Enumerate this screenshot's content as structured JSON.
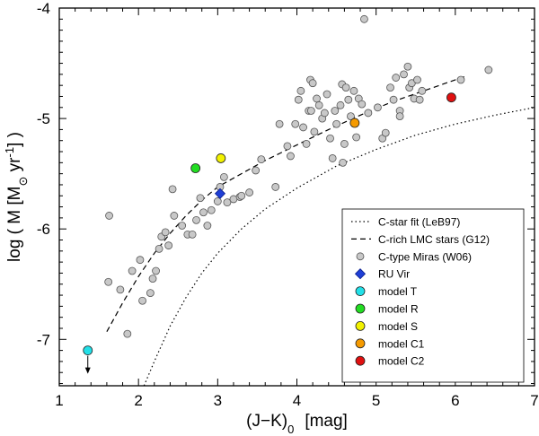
{
  "chart_data": {
    "type": "scatter",
    "xlabel": {
      "main": "(J−K)",
      "sub": "0",
      "unit": "[mag]"
    },
    "ylabel": {
      "prefix": "log ( ",
      "mdot": "M",
      "bracket_open": " [M",
      "sun": "⊙",
      "yr": " yr",
      "exp": "-1",
      "suffix": "] )"
    },
    "xlim": [
      1,
      7
    ],
    "ylim": [
      -7.42,
      -4.0
    ],
    "x_ticks": [
      1,
      2,
      3,
      4,
      5,
      6,
      7
    ],
    "y_ticks": [
      -7,
      -6,
      -5,
      -4
    ],
    "x_tick_labels": [
      "1",
      "2",
      "3",
      "4",
      "5",
      "6",
      "7"
    ],
    "y_tick_labels": [
      "-7",
      "-6",
      "-5",
      "-4"
    ],
    "series": [
      {
        "name": "C-type Miras (W06)",
        "marker": "circle",
        "color": "#c8c8c8",
        "points": [
          [
            1.63,
            -5.88
          ],
          [
            1.62,
            -6.48
          ],
          [
            1.77,
            -6.55
          ],
          [
            1.86,
            -6.95
          ],
          [
            1.92,
            -6.38
          ],
          [
            2.02,
            -6.28
          ],
          [
            2.05,
            -6.65
          ],
          [
            2.15,
            -6.58
          ],
          [
            2.22,
            -6.38
          ],
          [
            2.18,
            -6.45
          ],
          [
            2.26,
            -6.18
          ],
          [
            2.29,
            -6.07
          ],
          [
            2.34,
            -6.03
          ],
          [
            2.38,
            -6.15
          ],
          [
            2.45,
            -5.88
          ],
          [
            2.55,
            -5.97
          ],
          [
            2.62,
            -6.05
          ],
          [
            2.68,
            -6.05
          ],
          [
            2.73,
            -5.92
          ],
          [
            2.82,
            -5.85
          ],
          [
            2.87,
            -5.97
          ],
          [
            2.92,
            -5.83
          ],
          [
            2.78,
            -5.72
          ],
          [
            2.43,
            -5.64
          ],
          [
            3.0,
            -5.75
          ],
          [
            3.03,
            -5.62
          ],
          [
            3.08,
            -5.53
          ],
          [
            3.12,
            -5.76
          ],
          [
            3.2,
            -5.73
          ],
          [
            3.28,
            -5.71
          ],
          [
            3.3,
            -5.7
          ],
          [
            3.4,
            -5.67
          ],
          [
            3.48,
            -5.47
          ],
          [
            3.55,
            -5.37
          ],
          [
            3.73,
            -5.62
          ],
          [
            3.78,
            -5.05
          ],
          [
            3.88,
            -5.25
          ],
          [
            3.92,
            -5.34
          ],
          [
            3.98,
            -5.05
          ],
          [
            4.02,
            -4.83
          ],
          [
            4.05,
            -4.75
          ],
          [
            4.08,
            -5.08
          ],
          [
            4.12,
            -5.23
          ],
          [
            4.15,
            -4.93
          ],
          [
            4.17,
            -4.65
          ],
          [
            4.2,
            -4.68
          ],
          [
            4.22,
            -5.12
          ],
          [
            4.25,
            -4.82
          ],
          [
            4.28,
            -4.88
          ],
          [
            4.32,
            -5.0
          ],
          [
            4.35,
            -4.95
          ],
          [
            4.38,
            -4.78
          ],
          [
            4.42,
            -5.18
          ],
          [
            4.45,
            -5.36
          ],
          [
            4.48,
            -4.93
          ],
          [
            4.5,
            -5.05
          ],
          [
            4.55,
            -4.88
          ],
          [
            4.57,
            -4.69
          ],
          [
            4.6,
            -5.23
          ],
          [
            4.62,
            -4.72
          ],
          [
            4.65,
            -4.83
          ],
          [
            4.68,
            -4.98
          ],
          [
            4.72,
            -4.75
          ],
          [
            4.75,
            -5.17
          ],
          [
            4.78,
            -4.82
          ],
          [
            4.82,
            -4.87
          ],
          [
            4.85,
            -4.1
          ],
          [
            4.9,
            -4.95
          ],
          [
            5.02,
            -4.9
          ],
          [
            5.08,
            -5.18
          ],
          [
            5.12,
            -5.13
          ],
          [
            5.18,
            -4.72
          ],
          [
            5.22,
            -4.83
          ],
          [
            5.25,
            -4.63
          ],
          [
            5.3,
            -4.93
          ],
          [
            5.35,
            -4.6
          ],
          [
            5.4,
            -4.53
          ],
          [
            5.42,
            -4.72
          ],
          [
            5.45,
            -4.68
          ],
          [
            5.48,
            -4.82
          ],
          [
            5.52,
            -4.65
          ],
          [
            5.55,
            -4.83
          ],
          [
            5.58,
            -4.75
          ],
          [
            6.07,
            -4.65
          ],
          [
            6.42,
            -4.56
          ],
          [
            5.3,
            -4.98
          ],
          [
            4.58,
            -5.4
          ],
          [
            4.18,
            -4.93
          ]
        ]
      },
      {
        "name": "RU Vir",
        "marker": "diamond",
        "color": "#1f3fd6",
        "points": [
          [
            3.03,
            -5.68
          ]
        ]
      },
      {
        "name": "model T",
        "marker": "circle",
        "color": "#22e0e8",
        "points": [
          [
            1.36,
            -7.1
          ]
        ]
      },
      {
        "name": "model R",
        "marker": "circle",
        "color": "#22dd22",
        "points": [
          [
            2.72,
            -5.45
          ]
        ]
      },
      {
        "name": "model S",
        "marker": "circle",
        "color": "#f2f200",
        "points": [
          [
            3.04,
            -5.36
          ]
        ]
      },
      {
        "name": "model C1",
        "marker": "circle",
        "color": "#f59a00",
        "points": [
          [
            4.73,
            -5.04
          ]
        ]
      },
      {
        "name": "model C2",
        "marker": "circle",
        "color": "#e01010",
        "points": [
          [
            5.95,
            -4.81
          ]
        ]
      }
    ],
    "lines": [
      {
        "name": "C-star fit (LeB97)",
        "style": "dotted",
        "x_range": [
          2.07,
          7.0
        ],
        "points": [
          [
            2.07,
            -7.42
          ],
          [
            2.2,
            -7.2
          ],
          [
            2.4,
            -6.88
          ],
          [
            2.6,
            -6.62
          ],
          [
            2.8,
            -6.4
          ],
          [
            3.0,
            -6.22
          ],
          [
            3.3,
            -6.0
          ],
          [
            3.6,
            -5.82
          ],
          [
            4.0,
            -5.63
          ],
          [
            4.5,
            -5.43
          ],
          [
            5.0,
            -5.28
          ],
          [
            5.5,
            -5.15
          ],
          [
            6.0,
            -5.05
          ],
          [
            6.5,
            -4.97
          ],
          [
            7.0,
            -4.9
          ]
        ]
      },
      {
        "name": "C-rich LMC stars (G12)",
        "style": "dashed",
        "x_range": [
          1.6,
          6.12
        ],
        "points": [
          [
            1.6,
            -6.93
          ],
          [
            1.8,
            -6.67
          ],
          [
            2.0,
            -6.43
          ],
          [
            2.2,
            -6.22
          ],
          [
            2.4,
            -6.04
          ],
          [
            2.6,
            -5.88
          ],
          [
            2.8,
            -5.74
          ],
          [
            3.0,
            -5.62
          ],
          [
            3.3,
            -5.5
          ],
          [
            3.6,
            -5.38
          ],
          [
            4.0,
            -5.24
          ],
          [
            4.4,
            -5.1
          ],
          [
            4.8,
            -4.97
          ],
          [
            5.2,
            -4.85
          ],
          [
            5.6,
            -4.75
          ],
          [
            6.12,
            -4.62
          ]
        ]
      }
    ],
    "legend": {
      "placement": "bottom-right",
      "entries": [
        {
          "label": "C-star fit (LeB97)",
          "kind": "dotted"
        },
        {
          "label": "C-rich LMC stars (G12)",
          "kind": "dashed"
        },
        {
          "label": "C-type Miras (W06)",
          "kind": "circle",
          "color": "#c8c8c8"
        },
        {
          "label": "RU Vir",
          "kind": "diamond",
          "color": "#1f3fd6"
        },
        {
          "label": "model T",
          "kind": "circle",
          "color": "#22e0e8"
        },
        {
          "label": "model R",
          "kind": "circle",
          "color": "#22dd22"
        },
        {
          "label": "model S",
          "kind": "circle",
          "color": "#f2f200"
        },
        {
          "label": "model C1",
          "kind": "circle",
          "color": "#f59a00"
        },
        {
          "label": "model C2",
          "kind": "circle",
          "color": "#e01010"
        }
      ]
    },
    "annotations": [
      {
        "type": "upper-limit-arrow",
        "target": "model T"
      }
    ]
  }
}
